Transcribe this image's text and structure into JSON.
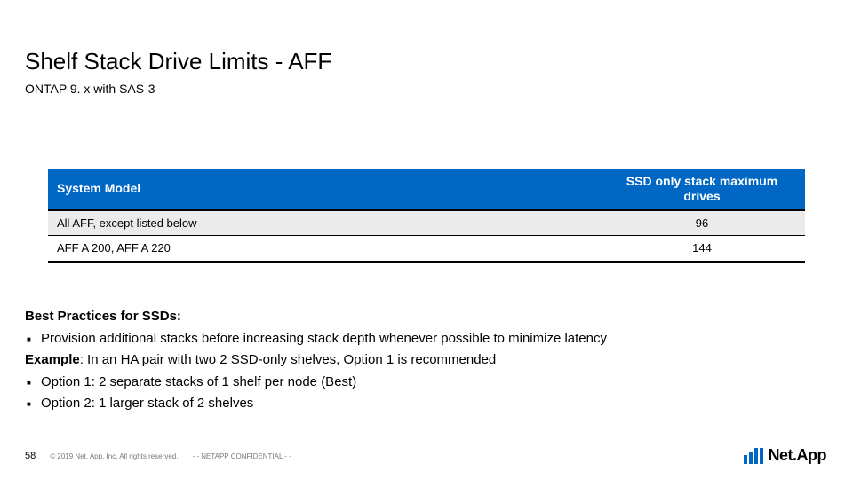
{
  "title": "Shelf Stack Drive Limits - AFF",
  "subtitle": "ONTAP 9. x with SAS-3",
  "table": {
    "header_model": "System Model",
    "header_value": "SSD only stack maximum drives",
    "rows": [
      {
        "model": "All AFF, except listed below",
        "value": "96"
      },
      {
        "model": "AFF A 200, AFF A 220",
        "value": "144"
      }
    ],
    "colors": {
      "header_bg": "#0067c5",
      "header_fg": "#ffffff",
      "alt_row_bg": "#ebebeb",
      "border": "#000000"
    },
    "font": {
      "header_size_pt": 14,
      "body_size_pt": 13,
      "header_weight": "700"
    }
  },
  "body": {
    "heading": "Best Practices for SSDs",
    "bullet1": "Provision additional stacks before increasing stack depth whenever possible to minimize latency",
    "example_label": "Example",
    "example_text": ": In an HA pair with two 2 SSD-only shelves, Option 1 is recommended",
    "option1": "Option 1: 2 separate stacks of 1 shelf per node (Best)",
    "option2": "Option 2: 1 larger stack of 2 shelves"
  },
  "footer": {
    "page": "58",
    "copyright": "© 2019 Net. App, Inc. All rights reserved.",
    "confidential": "- - NETAPP CONFIDENTIAL - -"
  },
  "logo": {
    "text": "Net.App",
    "brand_color": "#0067c5"
  }
}
